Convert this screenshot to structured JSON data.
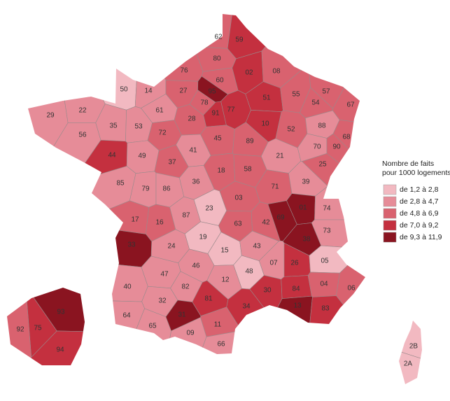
{
  "map": {
    "legend": {
      "title": [
        "Nombre de faits",
        "pour 1000 logements"
      ],
      "classes": [
        {
          "label": "de  1,2  à  2,8",
          "color": "#f2b9c1"
        },
        {
          "label": "de  2,8  à  4,7",
          "color": "#e68c98"
        },
        {
          "label": "de  4,8  à  6,9",
          "color": "#d9626f"
        },
        {
          "label": "de  7,0  à  9,2",
          "color": "#c4303f"
        },
        {
          "label": "de  9,3  à 11,9",
          "color": "#8a1420"
        }
      ]
    },
    "departments": [
      {
        "code": "62",
        "class": 2
      },
      {
        "code": "59",
        "class": 3
      },
      {
        "code": "80",
        "class": 2
      },
      {
        "code": "76",
        "class": 2
      },
      {
        "code": "60",
        "class": 2
      },
      {
        "code": "02",
        "class": 3
      },
      {
        "code": "08",
        "class": 2
      },
      {
        "code": "50",
        "class": 0
      },
      {
        "code": "14",
        "class": 1
      },
      {
        "code": "27",
        "class": 2
      },
      {
        "code": "95",
        "class": 4
      },
      {
        "code": "78",
        "class": 2
      },
      {
        "code": "91",
        "class": 3
      },
      {
        "code": "77",
        "class": 3
      },
      {
        "code": "51",
        "class": 3
      },
      {
        "code": "55",
        "class": 2
      },
      {
        "code": "57",
        "class": 2
      },
      {
        "code": "54",
        "class": 2
      },
      {
        "code": "67",
        "class": 2
      },
      {
        "code": "29",
        "class": 1
      },
      {
        "code": "22",
        "class": 1
      },
      {
        "code": "61",
        "class": 1
      },
      {
        "code": "28",
        "class": 2
      },
      {
        "code": "10",
        "class": 3
      },
      {
        "code": "52",
        "class": 2
      },
      {
        "code": "88",
        "class": 1
      },
      {
        "code": "68",
        "class": 2
      },
      {
        "code": "56",
        "class": 1
      },
      {
        "code": "35",
        "class": 1
      },
      {
        "code": "53",
        "class": 1
      },
      {
        "code": "72",
        "class": 2
      },
      {
        "code": "45",
        "class": 2
      },
      {
        "code": "89",
        "class": 2
      },
      {
        "code": "70",
        "class": 1
      },
      {
        "code": "90",
        "class": 2
      },
      {
        "code": "44",
        "class": 3
      },
      {
        "code": "49",
        "class": 1
      },
      {
        "code": "37",
        "class": 2
      },
      {
        "code": "41",
        "class": 1
      },
      {
        "code": "21",
        "class": 1
      },
      {
        "code": "25",
        "class": 2
      },
      {
        "code": "18",
        "class": 2
      },
      {
        "code": "58",
        "class": 2
      },
      {
        "code": "85",
        "class": 1
      },
      {
        "code": "79",
        "class": 1
      },
      {
        "code": "86",
        "class": 1
      },
      {
        "code": "36",
        "class": 1
      },
      {
        "code": "71",
        "class": 2
      },
      {
        "code": "39",
        "class": 1
      },
      {
        "code": "03",
        "class": 2
      },
      {
        "code": "01",
        "class": 4
      },
      {
        "code": "74",
        "class": 1
      },
      {
        "code": "17",
        "class": 2
      },
      {
        "code": "16",
        "class": 2
      },
      {
        "code": "87",
        "class": 1
      },
      {
        "code": "23",
        "class": 0
      },
      {
        "code": "63",
        "class": 2
      },
      {
        "code": "42",
        "class": 2
      },
      {
        "code": "69",
        "class": 4
      },
      {
        "code": "73",
        "class": 1
      },
      {
        "code": "38",
        "class": 4
      },
      {
        "code": "19",
        "class": 0
      },
      {
        "code": "15",
        "class": 0
      },
      {
        "code": "43",
        "class": 1
      },
      {
        "code": "24",
        "class": 1
      },
      {
        "code": "33",
        "class": 4
      },
      {
        "code": "46",
        "class": 1
      },
      {
        "code": "48",
        "class": 0
      },
      {
        "code": "07",
        "class": 1
      },
      {
        "code": "26",
        "class": 3
      },
      {
        "code": "05",
        "class": 0
      },
      {
        "code": "47",
        "class": 1
      },
      {
        "code": "82",
        "class": 1
      },
      {
        "code": "12",
        "class": 1
      },
      {
        "code": "30",
        "class": 3
      },
      {
        "code": "84",
        "class": 3
      },
      {
        "code": "04",
        "class": 2
      },
      {
        "code": "06",
        "class": 2
      },
      {
        "code": "40",
        "class": 1
      },
      {
        "code": "32",
        "class": 1
      },
      {
        "code": "81",
        "class": 3
      },
      {
        "code": "34",
        "class": 3
      },
      {
        "code": "13",
        "class": 4
      },
      {
        "code": "83",
        "class": 3
      },
      {
        "code": "64",
        "class": 1
      },
      {
        "code": "65",
        "class": 1
      },
      {
        "code": "31",
        "class": 4
      },
      {
        "code": "11",
        "class": 2
      },
      {
        "code": "09",
        "class": 1
      },
      {
        "code": "66",
        "class": 1
      }
    ],
    "paris_inset": [
      {
        "code": "93",
        "class": 4
      },
      {
        "code": "75",
        "class": 3
      },
      {
        "code": "92",
        "class": 2
      },
      {
        "code": "94",
        "class": 3
      }
    ],
    "corsica": [
      {
        "code": "2B",
        "class": 0
      },
      {
        "code": "2A",
        "class": 0
      }
    ]
  }
}
